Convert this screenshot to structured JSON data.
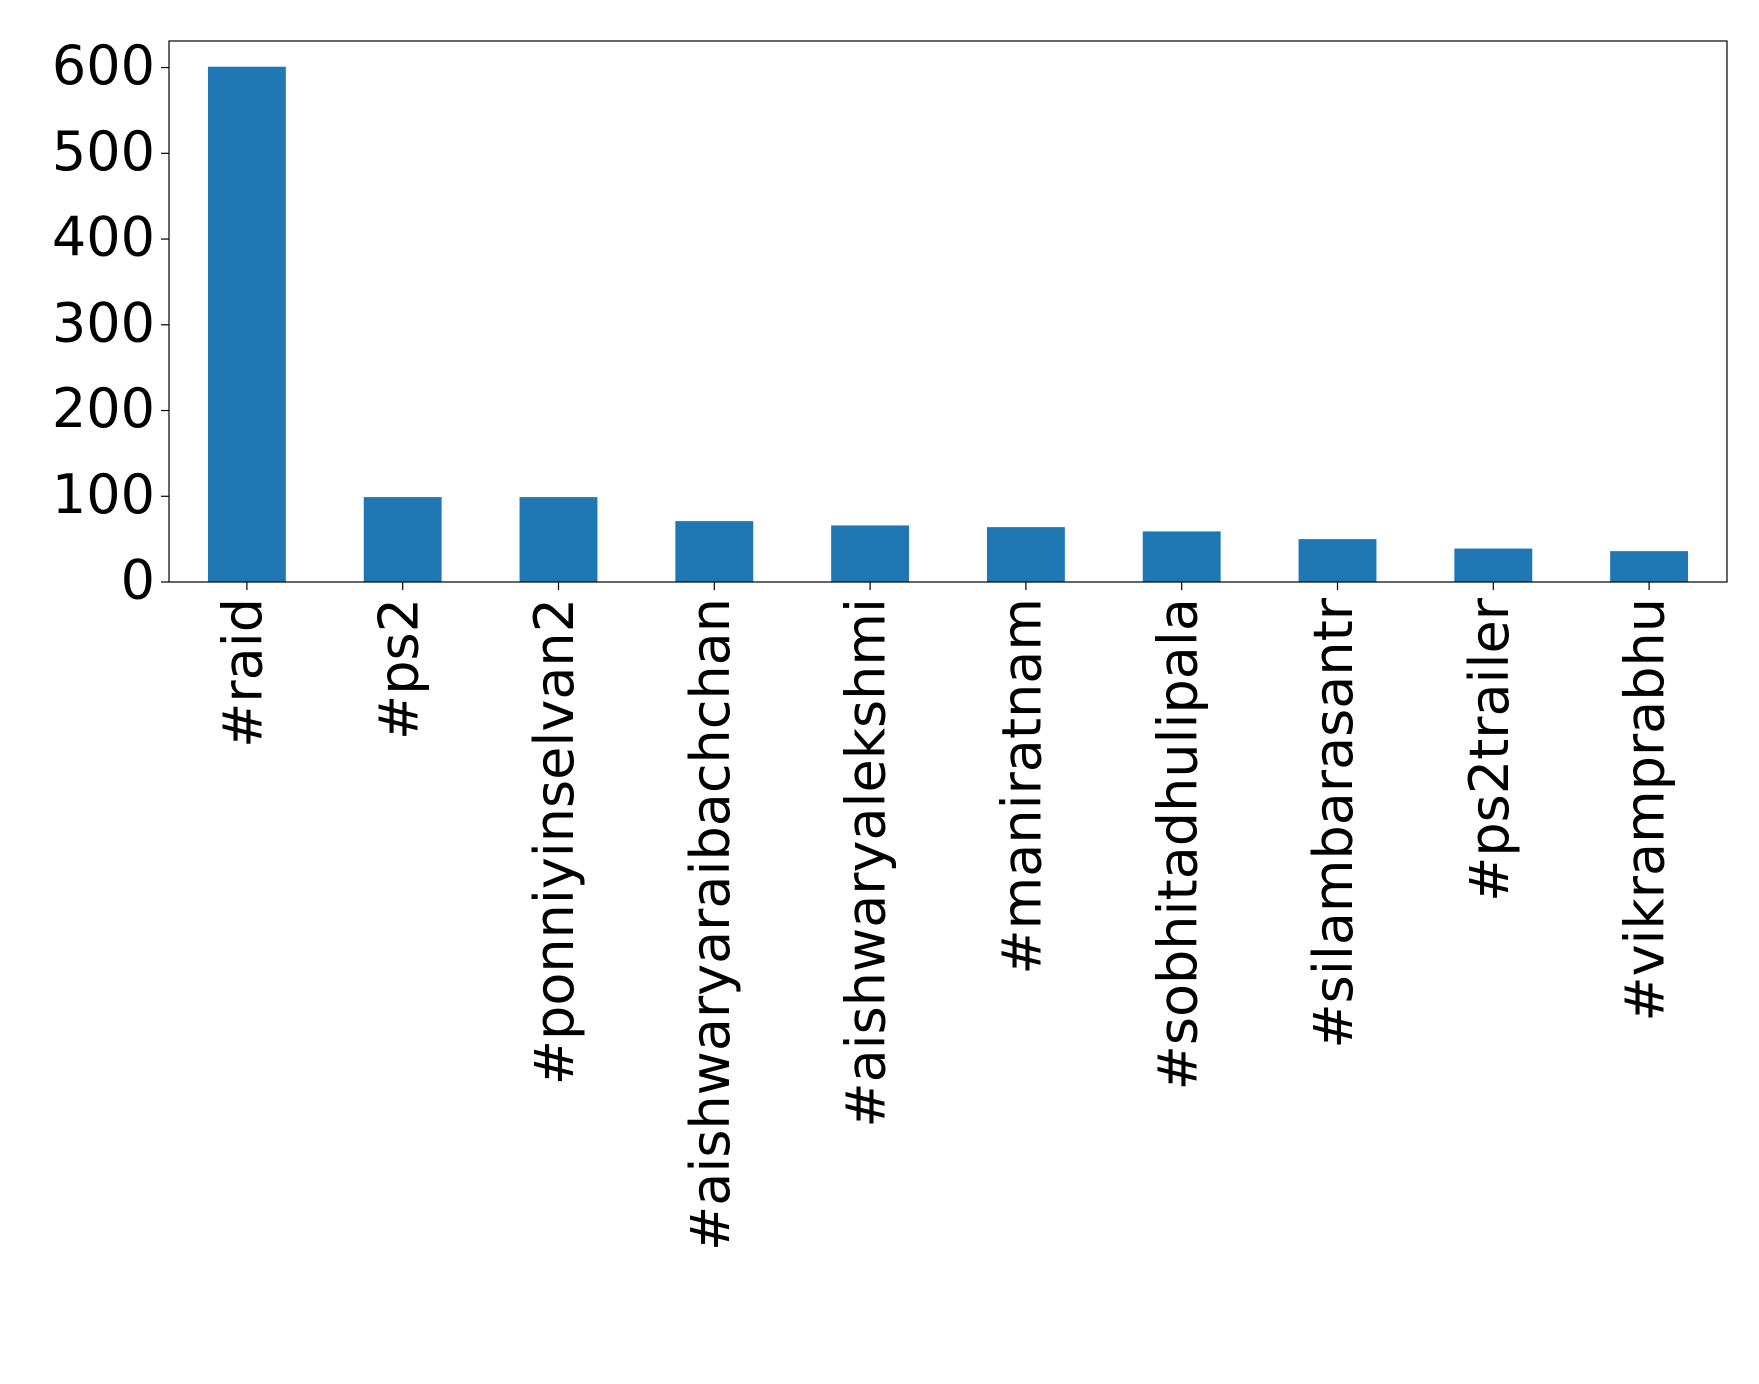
{
  "chart_data": {
    "type": "bar",
    "categories": [
      "#raid",
      "#ps2",
      "#ponniyinselvan2",
      "#aishwaryaraibachchan",
      "#aishwaryalekshmi",
      "#maniratnam",
      "#sobhitadhulipala",
      "#silambarasantr",
      "#ps2trailer",
      "#vikramprabhu"
    ],
    "values": [
      601,
      99,
      99,
      71,
      66,
      64,
      59,
      50,
      39,
      36
    ],
    "color": "#1f77b4",
    "ylim": [
      0,
      631
    ],
    "yticks": [
      0,
      100,
      200,
      300,
      400,
      500,
      600
    ],
    "grid": false
  }
}
